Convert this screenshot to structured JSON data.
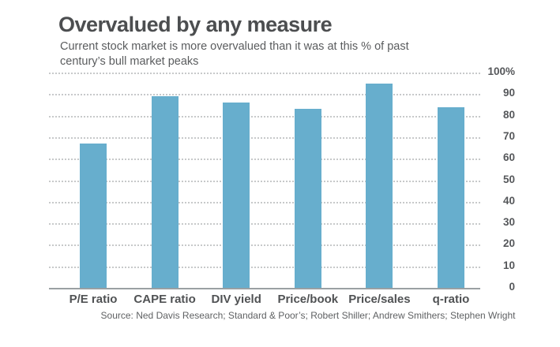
{
  "header": {
    "title": "Overvalued by any measure",
    "subtitle_line1": "Current stock market is more overvalued than it was at this % of past",
    "subtitle_line2": "century’s bull market peaks"
  },
  "chart_data": {
    "type": "bar",
    "title": "Overvalued by any measure",
    "subtitle": "Current stock market is more overvalued than it was at this % of past century’s bull market peaks",
    "categories": [
      "P/E ratio",
      "CAPE ratio",
      "DIV yield",
      "Price/book",
      "Price/sales",
      "q-ratio"
    ],
    "values": [
      67,
      89,
      86,
      83,
      95,
      84
    ],
    "xlabel": "",
    "ylabel": "",
    "ylim": [
      0,
      100
    ],
    "ytick_labels": [
      "100%",
      "90",
      "80",
      "70",
      "60",
      "50",
      "40",
      "30",
      "20",
      "10",
      "0"
    ],
    "yticks": [
      100,
      90,
      80,
      70,
      60,
      50,
      40,
      30,
      20,
      10,
      0
    ],
    "grid": "horizontal-dotted",
    "legend": "none",
    "bar_color": "#67aecd",
    "gridline_color": "#c7c9ca",
    "axis_line_color": "#9aa0a3",
    "text_color": "#4c4e50"
  },
  "footer": {
    "source": "Source: Ned Davis Research; Standard & Poor’s; Robert Shiller; Andrew Smithers; Stephen Wright"
  }
}
